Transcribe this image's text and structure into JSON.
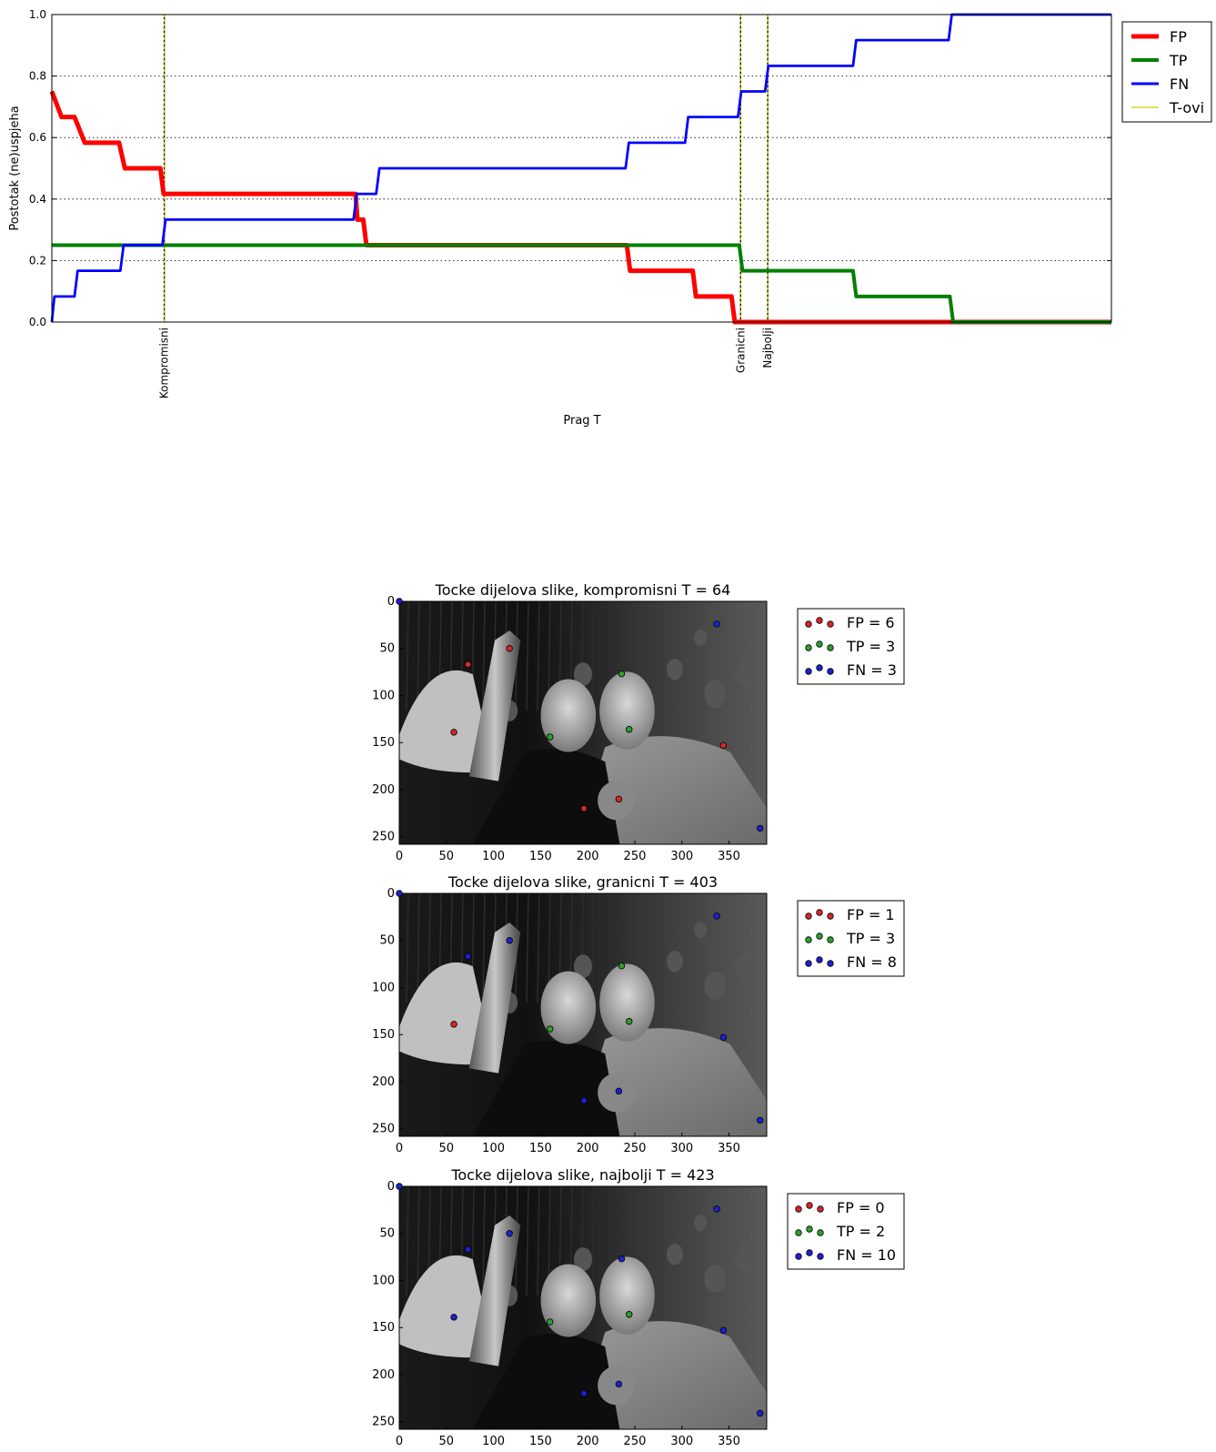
{
  "chart_data": [
    {
      "type": "line",
      "ylabel": "Postotak (ne)uspjeha",
      "xlabel": "Prag T",
      "ylim": [
        0.0,
        1.0
      ],
      "y_ticks": [
        "0.0",
        "0.2",
        "0.4",
        "0.6",
        "0.8",
        "1.0"
      ],
      "grid": "horizontal dotted",
      "legend_position": "outside-right",
      "x_axis": "threshold index (unlabeled ticks)",
      "series": [
        {
          "name": "FP",
          "color": "#ff0000",
          "style": "step-thick",
          "points": [
            [
              0,
              0.75
            ],
            [
              0.75,
              0.667
            ],
            [
              1.75,
              0.667
            ],
            [
              2.55,
              0.583
            ],
            [
              5.2,
              0.583
            ],
            [
              5.65,
              0.5
            ],
            [
              8.4,
              0.5
            ],
            [
              8.65,
              0.417
            ],
            [
              23.5,
              0.417
            ],
            [
              23.65,
              0.333
            ],
            [
              24.1,
              0.333
            ],
            [
              24.35,
              0.25
            ],
            [
              44.5,
              0.25
            ],
            [
              44.75,
              0.167
            ],
            [
              49.6,
              0.167
            ],
            [
              49.85,
              0.083
            ],
            [
              52.6,
              0.083
            ],
            [
              52.85,
              0.0
            ],
            [
              82,
              0.0
            ]
          ]
        },
        {
          "name": "TP",
          "color": "#008000",
          "style": "step",
          "points": [
            [
              0,
              0.25
            ],
            [
              53.2,
              0.25
            ],
            [
              53.45,
              0.167
            ],
            [
              62.0,
              0.167
            ],
            [
              62.25,
              0.083
            ],
            [
              69.5,
              0.083
            ],
            [
              69.75,
              0.0
            ],
            [
              82,
              0.0
            ]
          ]
        },
        {
          "name": "FN",
          "color": "#0000ff",
          "style": "step",
          "points": [
            [
              0,
              0.0
            ],
            [
              0.2,
              0.083
            ],
            [
              1.75,
              0.083
            ],
            [
              2.0,
              0.167
            ],
            [
              5.3,
              0.167
            ],
            [
              5.55,
              0.25
            ],
            [
              8.55,
              0.25
            ],
            [
              8.8,
              0.333
            ],
            [
              23.35,
              0.333
            ],
            [
              23.6,
              0.417
            ],
            [
              25.1,
              0.417
            ],
            [
              25.35,
              0.5
            ],
            [
              44.4,
              0.5
            ],
            [
              44.65,
              0.583
            ],
            [
              49.0,
              0.583
            ],
            [
              49.25,
              0.667
            ],
            [
              53.1,
              0.667
            ],
            [
              53.35,
              0.75
            ],
            [
              55.2,
              0.75
            ],
            [
              55.45,
              0.833
            ],
            [
              62.0,
              0.833
            ],
            [
              62.25,
              0.917
            ],
            [
              69.4,
              0.917
            ],
            [
              69.65,
              1.0
            ],
            [
              82,
              1.0
            ]
          ]
        }
      ],
      "thresholds_series_name": "T-ovi",
      "thresholds": [
        {
          "label": "Kompromisni",
          "x": 8.7
        },
        {
          "label": "Granicni",
          "x": 53.3
        },
        {
          "label": "Najbolji",
          "x": 55.4
        }
      ]
    },
    {
      "type": "scatter",
      "title": "Tocke dijelova slike, kompromisni T = 64",
      "x_ticks": [
        "0",
        "50",
        "100",
        "150",
        "200",
        "250",
        "300",
        "350"
      ],
      "y_ticks": [
        "0",
        "50",
        "100",
        "150",
        "200",
        "250"
      ],
      "xlim": [
        0,
        390
      ],
      "ylim": [
        258,
        0
      ],
      "background": "grayscale photo",
      "legend": [
        "FP = 6",
        "TP = 3",
        "FN = 3"
      ],
      "points": {
        "FP": [
          [
            73,
            67
          ],
          [
            117,
            50
          ],
          [
            58,
            139
          ],
          [
            196,
            220
          ],
          [
            233,
            210
          ],
          [
            344,
            153
          ]
        ],
        "TP": [
          [
            236,
            77
          ],
          [
            160,
            144
          ],
          [
            244,
            136
          ]
        ],
        "FN": [
          [
            337,
            24
          ],
          [
            383,
            241
          ],
          [
            0,
            0
          ]
        ]
      }
    },
    {
      "type": "scatter",
      "title": "Tocke dijelova slike, granicni T = 403",
      "x_ticks": [
        "0",
        "50",
        "100",
        "150",
        "200",
        "250",
        "300",
        "350"
      ],
      "y_ticks": [
        "0",
        "50",
        "100",
        "150",
        "200",
        "250"
      ],
      "xlim": [
        0,
        390
      ],
      "ylim": [
        258,
        0
      ],
      "background": "grayscale photo",
      "legend": [
        "FP = 1",
        "TP = 3",
        "FN = 8"
      ],
      "points": {
        "FP": [
          [
            58,
            139
          ]
        ],
        "TP": [
          [
            236,
            77
          ],
          [
            160,
            144
          ],
          [
            244,
            136
          ]
        ],
        "FN": [
          [
            337,
            24
          ],
          [
            73,
            67
          ],
          [
            117,
            50
          ],
          [
            196,
            220
          ],
          [
            233,
            210
          ],
          [
            344,
            153
          ],
          [
            383,
            241
          ],
          [
            0,
            0
          ]
        ]
      }
    },
    {
      "type": "scatter",
      "title": "Tocke dijelova slike, najbolji T = 423",
      "x_ticks": [
        "0",
        "50",
        "100",
        "150",
        "200",
        "250",
        "300",
        "350"
      ],
      "y_ticks": [
        "0",
        "50",
        "100",
        "150",
        "200",
        "250"
      ],
      "xlim": [
        0,
        390
      ],
      "ylim": [
        258,
        0
      ],
      "background": "grayscale photo",
      "legend": [
        "FP = 0",
        "TP = 2",
        "FN = 10"
      ],
      "points": {
        "FP": [],
        "TP": [
          [
            160,
            144
          ],
          [
            244,
            136
          ]
        ],
        "FN": [
          [
            337,
            24
          ],
          [
            73,
            67
          ],
          [
            117,
            50
          ],
          [
            236,
            77
          ],
          [
            58,
            139
          ],
          [
            196,
            220
          ],
          [
            233,
            210
          ],
          [
            344,
            153
          ],
          [
            383,
            241
          ],
          [
            0,
            0
          ]
        ]
      }
    }
  ],
  "colors": {
    "fp": "#ff0000",
    "tp": "#008000",
    "fn": "#0000ff",
    "threshold": "#cccc00",
    "fp_marker": "#d62728",
    "tp_marker": "#2ca02c",
    "fn_marker": "#1f1fd6"
  }
}
